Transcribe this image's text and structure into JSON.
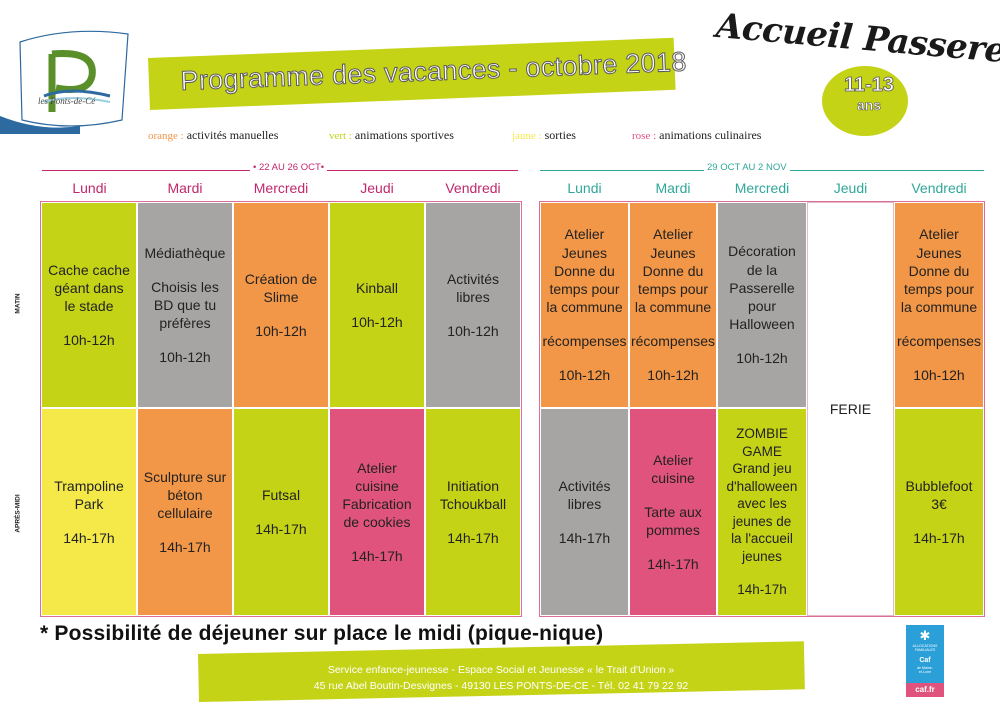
{
  "header": {
    "logo_text": "les Ponts-de-Cé",
    "title": "Programme des vacances - octobre 2018",
    "program_name": "Accueil Passerelle",
    "age_range": "11-13",
    "age_unit": "ans"
  },
  "legend": [
    {
      "key": "orange :",
      "label": "activités manuelles",
      "color": "#f29747"
    },
    {
      "key": "vert :",
      "label": "animations sportives",
      "color": "#c5d317"
    },
    {
      "key": "jaune :",
      "label": "sorties",
      "color": "#f5e94a"
    },
    {
      "key": "rose :",
      "label": "animations culinaires",
      "color": "#e0537c"
    }
  ],
  "side_labels": {
    "morning": "MATIN",
    "afternoon": "APRÈS-MIDI"
  },
  "week1": {
    "period": "• 22 AU 26 OCT•",
    "days": [
      "Lundi",
      "Mardi",
      "Mercredi",
      "Jeudi",
      "Vendredi"
    ],
    "morning": [
      {
        "text": "Cache cache\ngéant dans\nle stade",
        "time": "10h-12h",
        "color": "green"
      },
      {
        "text": "Médiathèque",
        "text2": "Choisis les\nBD que tu\npréfères",
        "time": "10h-12h",
        "color": "grey"
      },
      {
        "text": "Création de\nSlime",
        "time": "10h-12h",
        "color": "orange"
      },
      {
        "text": "Kinball",
        "time": "10h-12h",
        "color": "green"
      },
      {
        "text": "Activités\nlibres",
        "time": "10h-12h",
        "color": "grey"
      }
    ],
    "afternoon": [
      {
        "text": "Trampoline\nPark",
        "time": "14h-17h",
        "color": "yellow"
      },
      {
        "text": "Sculpture sur\nbéton\ncellulaire",
        "time": "14h-17h",
        "color": "orange"
      },
      {
        "text": "Futsal",
        "time": "14h-17h",
        "color": "green"
      },
      {
        "text": "Atelier\ncuisine\nFabrication\nde cookies",
        "time": "14h-17h",
        "color": "pink"
      },
      {
        "text": "Initiation\nTchoukball",
        "time": "14h-17h",
        "color": "green"
      }
    ]
  },
  "week2": {
    "period": "29 OCT AU 2 NOV",
    "days": [
      "Lundi",
      "Mardi",
      "Mercredi",
      "Jeudi",
      "Vendredi"
    ],
    "morning": [
      {
        "text": "Atelier\nJeunes\nDonne du\ntemps pour\nla commune",
        "text2": "récompenses",
        "time": "10h-12h",
        "color": "orange"
      },
      {
        "text": "Atelier\nJeunes\nDonne du\ntemps pour\nla commune",
        "text2": "récompenses",
        "time": "10h-12h",
        "color": "orange"
      },
      {
        "text": "Décoration\nde la\nPasserelle\npour\nHalloween",
        "time": "10h-12h",
        "color": "grey"
      },
      {
        "text": "Atelier\nJeunes\nDonne du\ntemps pour\nla commune",
        "text2": "récompenses",
        "time": "10h-12h",
        "color": "orange"
      }
    ],
    "holiday": "FERIE",
    "afternoon": [
      {
        "text": "Activités\nlibres",
        "time": "14h-17h",
        "color": "grey"
      },
      {
        "text": "Atelier\ncuisine",
        "text2": "Tarte aux\npommes",
        "time": "14h-17h",
        "color": "pink"
      },
      {
        "text": "ZOMBIE\nGAME\nGrand jeu\nd'halloween\navec les\njeunes de\nla l'accueil\njeunes",
        "time": "14h-17h",
        "color": "green"
      },
      {
        "text": "Bubblefoot\n3€",
        "time": "14h-17h",
        "color": "green"
      }
    ]
  },
  "note": "* Possibilité de déjeuner sur place le midi (pique-nique)",
  "footer": {
    "line1": "Service enfance-jeunesse - Espace Social et Jeunesse « le Trait d'Union »",
    "line2": "45 rue Abel Boutin-Desvignes - 49130 LES PONTS-DE-CE - Tél. 02 41 79 22 92"
  },
  "caf": {
    "line1": "ALLOCATIONS\nFAMILIALES",
    "line2": "Caf",
    "line3": "de Maine-\net-Loire",
    "badge": "caf.fr"
  },
  "colors": {
    "lime": "#c5d317",
    "orange": "#f29747",
    "grey": "#a7a5a4",
    "yellow": "#f5e94a",
    "pink": "#e0537c",
    "teal": "#2fa79a",
    "magenta": "#c2276d"
  }
}
